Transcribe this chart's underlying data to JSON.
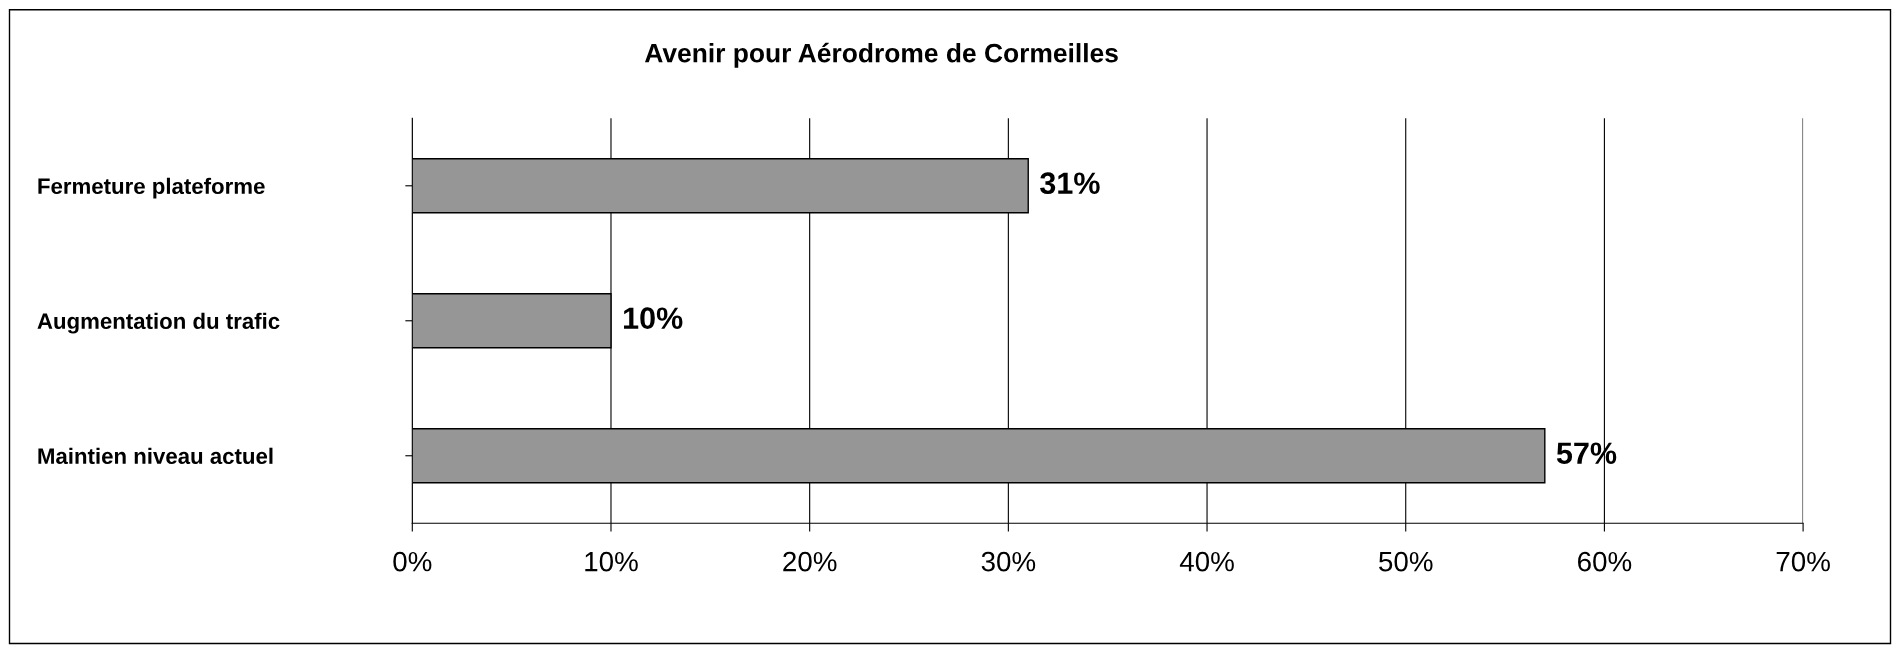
{
  "chart_data": {
    "type": "bar",
    "orientation": "horizontal",
    "title": "Avenir pour Aérodrome de Cormeilles",
    "categories": [
      "Fermeture plateforme",
      "Augmentation du trafic",
      "Maintien niveau actuel"
    ],
    "values": [
      31,
      10,
      57
    ],
    "value_labels": [
      "31%",
      "10%",
      "57%"
    ],
    "color": "#969696",
    "xlim": [
      0,
      70
    ],
    "xticks": [
      {
        "value": 0,
        "label": "0%"
      },
      {
        "value": 10,
        "label": "10%"
      },
      {
        "value": 20,
        "label": "20%"
      },
      {
        "value": 30,
        "label": "30%"
      },
      {
        "value": 40,
        "label": "40%"
      },
      {
        "value": 50,
        "label": "50%"
      },
      {
        "value": 60,
        "label": "60%"
      },
      {
        "value": 70,
        "label": "70%"
      }
    ],
    "grid": "x",
    "legend": false
  }
}
